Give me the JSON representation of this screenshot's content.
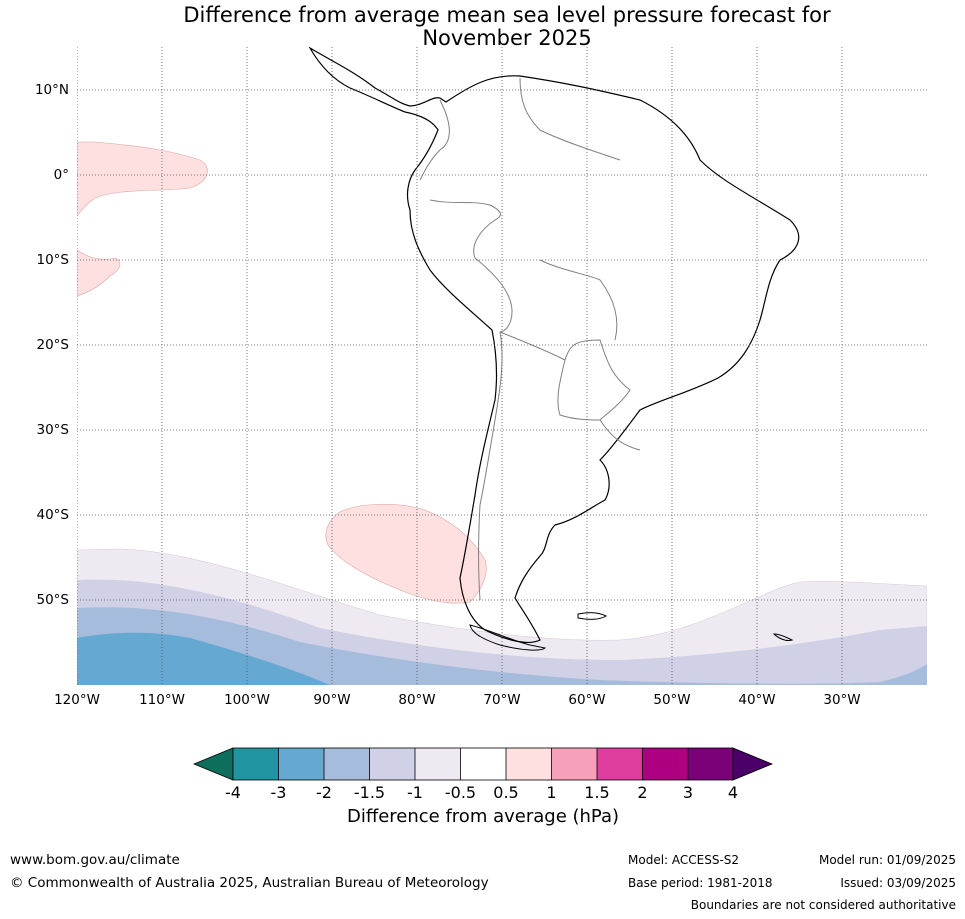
{
  "title": {
    "line1": "Difference from average mean sea level pressure forecast for",
    "line2": "November 2025"
  },
  "map": {
    "projection": "lat-lon grid",
    "lon_range": [
      "120°W",
      "20°W"
    ],
    "lat_range": [
      "60°S",
      "15°N"
    ],
    "lat_labels": [
      "10°N",
      "0°",
      "10°S",
      "20°S",
      "30°S",
      "40°S",
      "50°S"
    ],
    "lon_labels": [
      "120°W",
      "110°W",
      "100°W",
      "90°W",
      "80°W",
      "70°W",
      "60°W",
      "50°W",
      "40°W",
      "30°W"
    ],
    "gridlines": true
  },
  "colorbar": {
    "ticks": [
      "-4",
      "-3",
      "-2",
      "-1.5",
      "-1",
      "-0.5",
      "0.5",
      "1",
      "1.5",
      "2",
      "3",
      "4"
    ],
    "colors": [
      "#0e6e5c",
      "#2094a0",
      "#65a9d2",
      "#a6bcdc",
      "#d0d0e6",
      "#efeaf2",
      "#ffffff",
      "#fde0df",
      "#f7a0bb",
      "#df3d9d",
      "#ad0080",
      "#7a0077",
      "#4a0068"
    ],
    "label": "Difference from average (hPa)"
  },
  "footer": {
    "website": "www.bom.gov.au/climate",
    "copyright": "© Commonwealth of Australia 2025, Australian Bureau of Meteorology",
    "model": "Model: ACCESS-S2",
    "base_period": "Base period: 1981-2018",
    "model_run": "Model run: 01/09/2025",
    "issued": "Issued: 03/09/2025",
    "disclaimer": "Boundaries are not considered authoritative"
  }
}
